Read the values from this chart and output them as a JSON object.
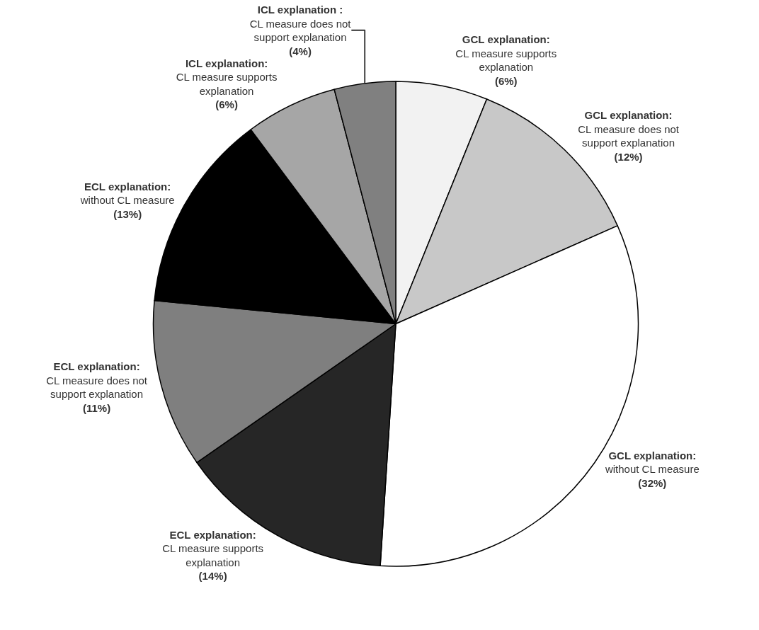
{
  "chart_data": {
    "type": "pie",
    "categories": [
      "GCL explanation:\nCL measure supports\nexplanation",
      "GCL explanation:\nCL measure does not\nsupport explanation",
      "GCL explanation:\nwithout CL measure",
      "ECL explanation:\nCL measure supports\nexplanation",
      "ECL explanation:\nCL measure does not\nsupport explanation",
      "ECL explanation:\nwithout CL measure",
      "ICL explanation:\nCL measure supports\nexplanation",
      "ICL explanation :\nCL measure does not\nsupport explanation"
    ],
    "values": [
      6,
      12,
      32,
      14,
      11,
      13,
      6,
      4
    ],
    "value_labels": [
      "(6%)",
      "(12%)",
      "(32%)",
      "(14%)",
      "(11%)",
      "(13%)",
      "(6%)",
      "(4%)"
    ],
    "colors": [
      "#f2f2f2",
      "#c8c8c8",
      "#ffffff",
      "#262626",
      "#7f7f7f",
      "#000000",
      "#a6a6a6",
      "#808080"
    ],
    "legend": false
  }
}
